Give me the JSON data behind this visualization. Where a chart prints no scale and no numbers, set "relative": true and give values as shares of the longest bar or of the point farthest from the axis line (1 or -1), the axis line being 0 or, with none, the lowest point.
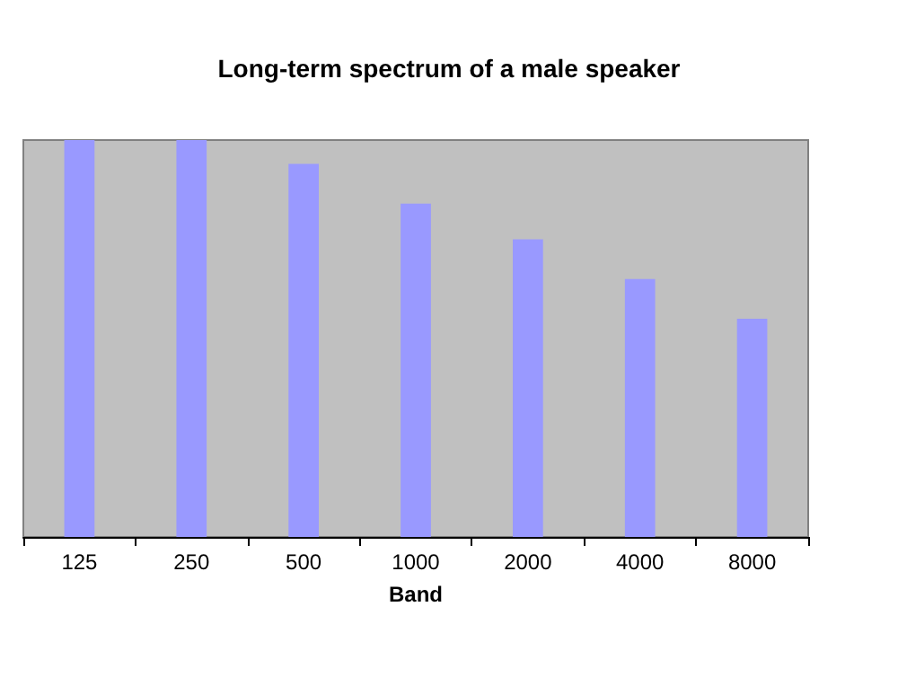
{
  "chart_data": {
    "type": "bar",
    "title": "Long-term spectrum of a male speaker",
    "xlabel": "Band",
    "categories": [
      "125",
      "250",
      "500",
      "1000",
      "2000",
      "4000",
      "8000"
    ],
    "values": [
      1,
      1,
      0.94,
      0.84,
      0.75,
      0.65,
      0.55
    ],
    "color": "#9999ff",
    "relative": true
  }
}
